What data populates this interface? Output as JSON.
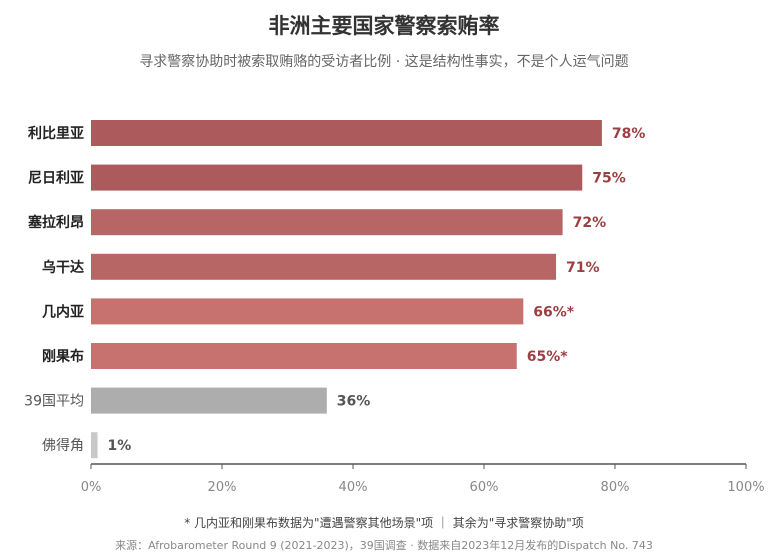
{
  "header": {
    "title": "非洲主要国家警察索贿率",
    "subtitle": "寻求警察协助时被索取贿赂的受访者比例 · 这是结构性事实，不是个人运气问题"
  },
  "footer": {
    "footnote": "* 几内亚和刚果布数据为\"遭遇警察其他场景\"项 ｜ 其余为\"寻求警察协助\"项",
    "source": "来源：Afrobarometer Round 9 (2021-2023)，39国调查 · 数据来自2023年12月发布的Dispatch No. 743"
  },
  "chart_data": {
    "type": "bar",
    "orientation": "horizontal",
    "categories": [
      "利比里亚",
      "尼日利亚",
      "塞拉利昂",
      "乌干达",
      "几内亚",
      "刚果布",
      "39国平均",
      "佛得角"
    ],
    "values": [
      78,
      75,
      72,
      71,
      66,
      65,
      36,
      1
    ],
    "value_labels": [
      "78%",
      "75%",
      "72%",
      "71%",
      "66%*",
      "65%*",
      "36%",
      "1%"
    ],
    "bar_colors": [
      "#ad5a5d",
      "#ad5a5d",
      "#b86565",
      "#b86565",
      "#c87270",
      "#c87270",
      "#adadad",
      "#c8c8c8"
    ],
    "label_colors": [
      "#9c3f42",
      "#9c3f42",
      "#9c3f42",
      "#9c3f42",
      "#9c3f42",
      "#9c3f42",
      "#555555",
      "#555555"
    ],
    "category_bold": [
      true,
      true,
      true,
      true,
      true,
      true,
      false,
      false
    ],
    "xlim": [
      0,
      100
    ],
    "xticks": [
      0,
      20,
      40,
      60,
      80,
      100
    ],
    "xtick_labels": [
      "0%",
      "20%",
      "40%",
      "60%",
      "80%",
      "100%"
    ],
    "grid": false
  }
}
